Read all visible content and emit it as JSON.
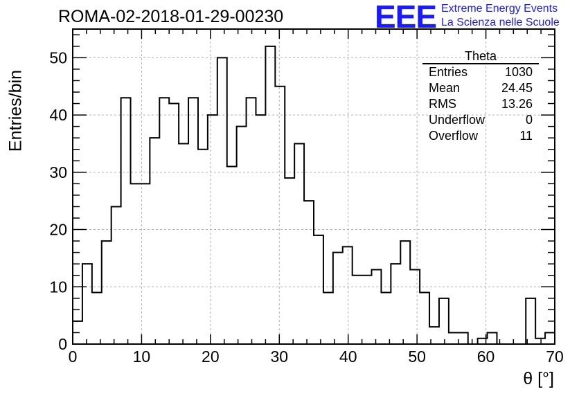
{
  "header": {
    "run_title": "ROMA-02-2018-01-29-00230",
    "logo_text": "EEE",
    "logo_line1": "Extreme Energy Events",
    "logo_line2": "La Scienza nelle Scuole"
  },
  "stats_box": {
    "title": "Theta",
    "rows": [
      {
        "label": "Entries",
        "value": "1030"
      },
      {
        "label": "Mean",
        "value": "24.45"
      },
      {
        "label": "RMS",
        "value": "13.26"
      },
      {
        "label": "Underflow",
        "value": "0"
      },
      {
        "label": "Overflow",
        "value": "11"
      }
    ]
  },
  "colors": {
    "line": "#000000",
    "grid": "#b0b0b0",
    "logo": "#1a1aff"
  },
  "chart_data": {
    "type": "histogram",
    "title": "ROMA-02-2018-01-29-00230",
    "xlabel": "θ [°]",
    "ylabel": "Entries/bin",
    "xlim": [
      0,
      70
    ],
    "ylim": [
      0,
      55
    ],
    "bin_width": 1.4,
    "x_ticks": [
      0,
      10,
      20,
      30,
      40,
      50,
      60,
      70
    ],
    "y_ticks": [
      0,
      10,
      20,
      30,
      40,
      50
    ],
    "grid": true,
    "legend_position": "top-right",
    "bin_starts": [
      0,
      1.4,
      2.8,
      4.2,
      5.6,
      7.0,
      8.4,
      9.8,
      11.2,
      12.6,
      14.0,
      15.4,
      16.8,
      18.2,
      19.6,
      21.0,
      22.4,
      23.8,
      25.2,
      26.6,
      28.0,
      29.4,
      30.8,
      32.2,
      33.6,
      35.0,
      36.4,
      37.8,
      39.2,
      40.6,
      42.0,
      43.4,
      44.8,
      46.2,
      47.6,
      49.0,
      50.4,
      51.8,
      53.2,
      54.6,
      56.0,
      57.4,
      58.8,
      60.2,
      61.6,
      63.0,
      64.4,
      65.8,
      67.2,
      68.6
    ],
    "values": [
      4,
      14,
      9,
      18,
      24,
      43,
      28,
      28,
      36,
      43,
      42,
      35,
      43,
      34,
      40,
      50,
      31,
      38,
      43,
      40,
      52,
      45,
      29,
      35,
      25,
      19,
      9,
      16,
      17,
      12,
      12,
      13,
      9,
      14,
      18,
      13,
      9,
      3,
      8,
      2,
      2,
      0,
      1,
      2,
      0,
      0,
      0,
      8,
      1,
      2
    ]
  }
}
